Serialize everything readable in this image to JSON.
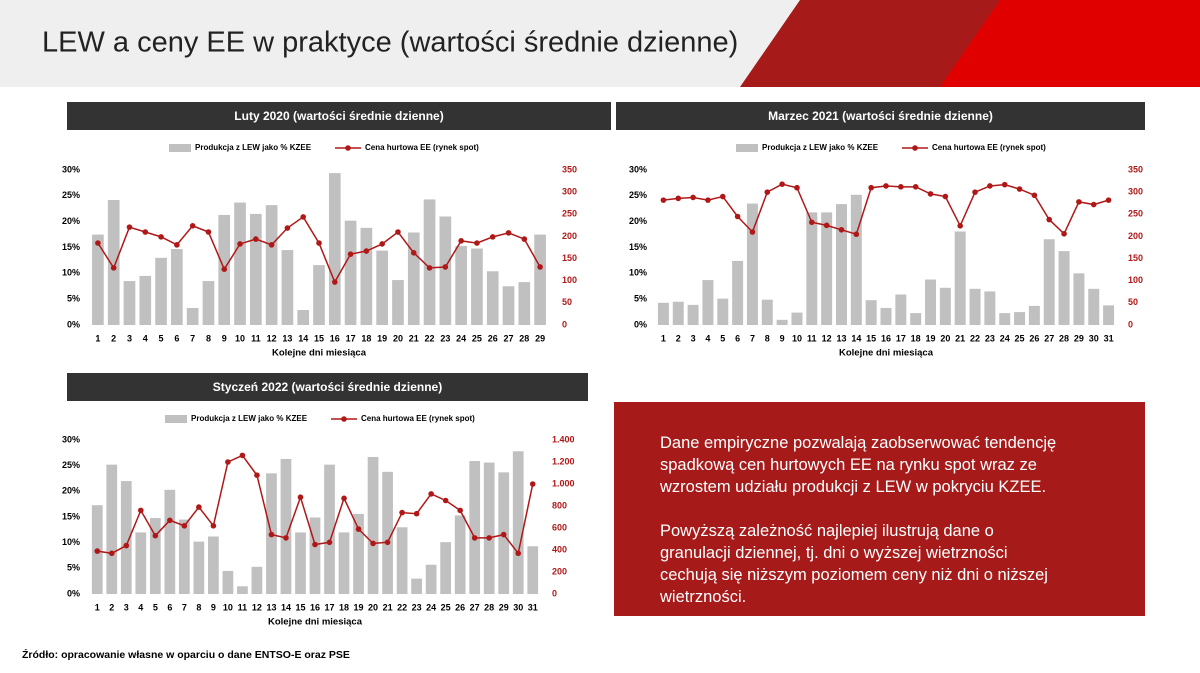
{
  "header": {
    "title": "LEW a ceny EE w praktyce (wartości średnie dzienne)"
  },
  "note": {
    "paragraphs": [
      "Dane empiryczne pozwalają zaobserwować tendencję spadkową cen hurtowych EE na rynku spot wraz ze wzrostem udziału produkcji z LEW w pokryciu KZEE.",
      "Powyższą zależność najlepiej ilustrują dane o granulacji dziennej, tj. dni o wyższej wietrzności cechują się niższym poziomem ceny niż dni o niższej wietrzności."
    ]
  },
  "source": "Źródło: opracowanie własne w oparciu o dane ENTSO-E oraz PSE",
  "chart_data": [
    {
      "type": "combo",
      "title": "Luty 2020 (wartości średnie dzienne)",
      "x_label": "Kolejne dni miesiąca",
      "categories": [
        "1",
        "2",
        "3",
        "4",
        "5",
        "6",
        "7",
        "8",
        "9",
        "10",
        "11",
        "12",
        "13",
        "14",
        "15",
        "16",
        "17",
        "18",
        "19",
        "20",
        "21",
        "22",
        "23",
        "24",
        "25",
        "26",
        "27",
        "28",
        "29"
      ],
      "series": [
        {
          "name": "Produkcja z LEW jako % KZEE",
          "type": "bar",
          "color": "#c0c0c0",
          "values": [
            17.5,
            24.2,
            8.5,
            9.5,
            13,
            14.7,
            3.3,
            8.5,
            21.3,
            23.7,
            21.5,
            23.2,
            14.5,
            2.9,
            11.6,
            29.4,
            20.2,
            18.8,
            14.4,
            8.7,
            17.9,
            24.3,
            21,
            15.3,
            14.8,
            10.4,
            7.5,
            8.3,
            17.5
          ]
        },
        {
          "name": "Cena hurtowa EE (rynek spot)",
          "type": "line",
          "axis": "y2",
          "color": "#b01818",
          "values": [
            185,
            129,
            221,
            210,
            199,
            181,
            224,
            210,
            126,
            183,
            194,
            181,
            219,
            244,
            185,
            97,
            160,
            167,
            183,
            210,
            163,
            129,
            131,
            190,
            185,
            199,
            208,
            194,
            131
          ]
        }
      ],
      "ylim": [
        0,
        30
      ],
      "yticks": [
        {
          "value": 0,
          "label": "0%"
        },
        {
          "value": 5,
          "label": "5%"
        },
        {
          "value": 10,
          "label": "10%"
        },
        {
          "value": 15,
          "label": "15%"
        },
        {
          "value": 20,
          "label": "20%"
        },
        {
          "value": 25,
          "label": "25%"
        },
        {
          "value": 30,
          "label": "30%"
        }
      ],
      "y2lim": [
        0,
        350
      ],
      "y2ticks": [
        0,
        50,
        100,
        150,
        200,
        250,
        300,
        350
      ],
      "legend": "top"
    },
    {
      "type": "combo",
      "title": "Marzec 2021 (wartości średnie dzienne)",
      "x_label": "Kolejne dni miesiąca",
      "categories": [
        "1",
        "2",
        "3",
        "4",
        "5",
        "6",
        "7",
        "8",
        "9",
        "10",
        "11",
        "12",
        "13",
        "14",
        "15",
        "16",
        "17",
        "18",
        "19",
        "20",
        "21",
        "22",
        "23",
        "24",
        "25",
        "26",
        "27",
        "28",
        "29",
        "30",
        "31"
      ],
      "series": [
        {
          "name": "Produkcja z LEW jako % KZEE",
          "type": "bar",
          "color": "#c0c0c0",
          "values": [
            4.3,
            4.5,
            3.9,
            8.7,
            5.1,
            12.4,
            23.5,
            4.9,
            1,
            2.4,
            21.8,
            21.8,
            23.4,
            25.2,
            4.8,
            3.3,
            5.9,
            2.3,
            8.8,
            7.2,
            18.1,
            7,
            6.5,
            2.3,
            2.5,
            3.7,
            16.6,
            14.3,
            10,
            7,
            3.8
          ]
        },
        {
          "name": "Cena hurtowa EE (rynek spot)",
          "type": "line",
          "axis": "y2",
          "color": "#b01818",
          "values": [
            282,
            286,
            288,
            282,
            290,
            245,
            210,
            300,
            318,
            310,
            232,
            225,
            215,
            205,
            310,
            314,
            312,
            312,
            296,
            290,
            224,
            300,
            314,
            317,
            307,
            293,
            238,
            206,
            278,
            272,
            282
          ]
        }
      ],
      "ylim": [
        0,
        30
      ],
      "yticks": [
        {
          "value": 0,
          "label": "0%"
        },
        {
          "value": 5,
          "label": "5%"
        },
        {
          "value": 10,
          "label": "10%"
        },
        {
          "value": 15,
          "label": "15%"
        },
        {
          "value": 20,
          "label": "20%"
        },
        {
          "value": 25,
          "label": "25%"
        },
        {
          "value": 30,
          "label": "30%"
        }
      ],
      "y2lim": [
        0,
        350
      ],
      "y2ticks": [
        0,
        50,
        100,
        150,
        200,
        250,
        300,
        350
      ],
      "legend": "top"
    },
    {
      "type": "combo",
      "title": "Styczeń 2022 (wartości średnie dzienne)",
      "x_label": "Kolejne dni miesiąca",
      "categories": [
        "1",
        "2",
        "3",
        "4",
        "5",
        "6",
        "7",
        "8",
        "9",
        "10",
        "11",
        "12",
        "13",
        "14",
        "15",
        "16",
        "17",
        "18",
        "19",
        "20",
        "21",
        "22",
        "23",
        "24",
        "25",
        "26",
        "27",
        "28",
        "29",
        "30",
        "31"
      ],
      "series": [
        {
          "name": "Produkcja z LEW jako % KZEE",
          "type": "bar",
          "color": "#c0c0c0",
          "values": [
            17.3,
            25.2,
            22,
            12,
            14.8,
            20.3,
            14.5,
            10.2,
            11.2,
            4.5,
            1.5,
            5.3,
            23.5,
            26.3,
            12,
            14.9,
            25.2,
            12,
            15.6,
            26.7,
            23.8,
            13,
            3,
            5.7,
            10.1,
            15.3,
            25.9,
            25.6,
            23.7,
            27.8,
            9.3
          ]
        },
        {
          "name": "Cena hurtowa EE (rynek spot)",
          "type": "line",
          "axis": "y2",
          "color": "#b01818",
          "values": [
            390,
            370,
            440,
            760,
            530,
            670,
            620,
            790,
            620,
            1200,
            1260,
            1080,
            540,
            510,
            880,
            450,
            470,
            870,
            590,
            460,
            470,
            740,
            730,
            910,
            850,
            760,
            510,
            510,
            540,
            370,
            1000
          ]
        }
      ],
      "ylim": [
        0,
        30
      ],
      "yticks": [
        {
          "value": 0,
          "label": "0%"
        },
        {
          "value": 5,
          "label": "5%"
        },
        {
          "value": 10,
          "label": "10%"
        },
        {
          "value": 15,
          "label": "15%"
        },
        {
          "value": 20,
          "label": "20%"
        },
        {
          "value": 25,
          "label": "25%"
        },
        {
          "value": 30,
          "label": "30%"
        }
      ],
      "y2lim": [
        0,
        1400
      ],
      "y2ticks": [
        0,
        200,
        400,
        600,
        800,
        {
          "value": 1000,
          "label": "1.000"
        },
        {
          "value": 1200,
          "label": "1.200"
        },
        {
          "value": 1400,
          "label": "1.400"
        }
      ],
      "legend": "top"
    }
  ]
}
